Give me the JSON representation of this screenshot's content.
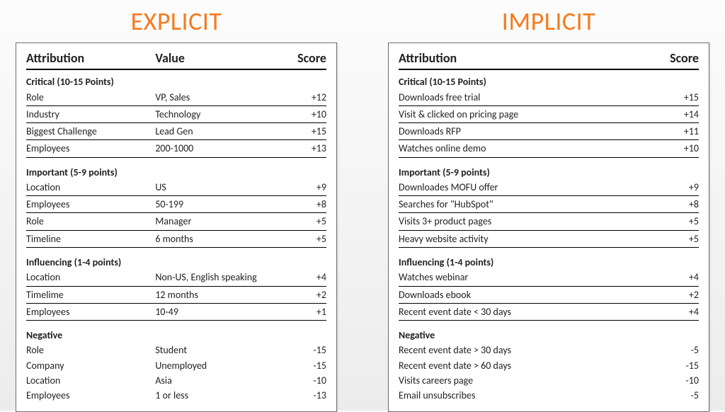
{
  "titles": {
    "left": "EXPLICIT",
    "right": "IMPLICIT"
  },
  "title_color": "#f57c1f",
  "headers": {
    "attribution": "Attribution",
    "value": "Value",
    "score": "Score"
  },
  "left": {
    "sections": [
      {
        "label": "Critical (10-15 Points)",
        "rows": [
          {
            "attr": "Role",
            "val": "VP, Sales",
            "score": "+12"
          },
          {
            "attr": "Industry",
            "val": "Technology",
            "score": "+10"
          },
          {
            "attr": "Biggest Challenge",
            "val": "Lead Gen",
            "score": "+15"
          },
          {
            "attr": "Employees",
            "val": "200-1000",
            "score": "+13"
          }
        ]
      },
      {
        "label": "Important (5-9 points)",
        "rows": [
          {
            "attr": "Location",
            "val": "US",
            "score": "+9"
          },
          {
            "attr": "Employees",
            "val": "50-199",
            "score": "+8"
          },
          {
            "attr": "Role",
            "val": "Manager",
            "score": "+5"
          },
          {
            "attr": "Timeline",
            "val": "6 months",
            "score": "+5"
          }
        ]
      },
      {
        "label": "Influencing (1-4 points)",
        "rows": [
          {
            "attr": "Location",
            "val": "Non-US, English speaking",
            "score": "+4"
          },
          {
            "attr": "Timelime",
            "val": "12 months",
            "score": "+2"
          },
          {
            "attr": "Employees",
            "val": "10-49",
            "score": "+1"
          }
        ]
      },
      {
        "label": "Negative",
        "rows": [
          {
            "attr": "Role",
            "val": "Student",
            "score": "-15"
          },
          {
            "attr": "Company",
            "val": "Unemployed",
            "score": "-15"
          },
          {
            "attr": "Location",
            "val": "Asia",
            "score": "-10"
          },
          {
            "attr": "Employees",
            "val": "1 or less",
            "score": "-13"
          }
        ]
      }
    ]
  },
  "right": {
    "sections": [
      {
        "label": "Critical (10-15 Points)",
        "rows": [
          {
            "attr": "Downloads free trial",
            "score": "+15"
          },
          {
            "attr": "Visit & clicked on pricing page",
            "score": "+14"
          },
          {
            "attr": "Downloads RFP",
            "score": "+11"
          },
          {
            "attr": "Watches online demo",
            "score": "+10"
          }
        ]
      },
      {
        "label": "Important (5-9 points)",
        "rows": [
          {
            "attr": "Downloades MOFU offer",
            "score": "+9"
          },
          {
            "attr": "Searches for \"HubSpot\"",
            "score": "+8"
          },
          {
            "attr": "Visits 3+ product pages",
            "score": "+5"
          },
          {
            "attr": "Heavy website activity",
            "score": "+5"
          }
        ]
      },
      {
        "label": "Influencing (1-4 points)",
        "rows": [
          {
            "attr": "Watches webinar",
            "score": "+4"
          },
          {
            "attr": "Downloads ebook",
            "score": "+2"
          },
          {
            "attr": "Recent event date < 30 days",
            "score": "+4"
          }
        ]
      },
      {
        "label": "Negative",
        "rows": [
          {
            "attr": "Recent event date > 30 days",
            "score": "-5"
          },
          {
            "attr": "Recent event date > 60 days",
            "score": "-15"
          },
          {
            "attr": "Visits careers page",
            "score": "-10"
          },
          {
            "attr": "Email unsubscribes",
            "score": "-5"
          }
        ]
      }
    ]
  }
}
